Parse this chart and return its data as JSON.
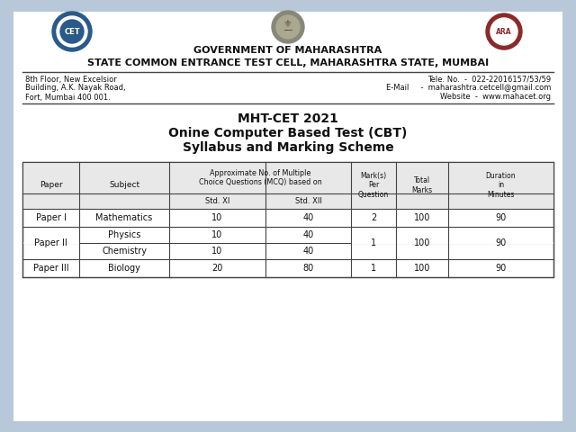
{
  "bg_color": "#b8c8d8",
  "paper_bg": "#ffffff",
  "title_line1": "MHT-CET 2021",
  "title_line2": "Onine Computer Based Test (CBT)",
  "title_line3": "Syllabus and Marking Scheme",
  "gov_line1": "GOVERNMENT OF MAHARASHTRA",
  "gov_line2": "STATE COMMON ENTRANCE TEST CELL, MAHARASHTRA STATE, MUMBAI",
  "addr_left": [
    "8th Floor, New Excelsior",
    "Building, A.K. Nayak Road,",
    "Fort, Mumbai 400 001."
  ],
  "addr_right_lines": [
    "Tele. No.  -  022-22016157/53/59",
    "E-Mail     -  maharashtra.cetcell@gmail.com",
    "Website  -  www.mahacet.org"
  ],
  "line_color": "#444444",
  "text_color": "#111111",
  "header_bg": "#e8e8e8",
  "cet_color": "#2a5a8a",
  "ara_color": "#8a2a2a",
  "emblem_color": "#888877"
}
